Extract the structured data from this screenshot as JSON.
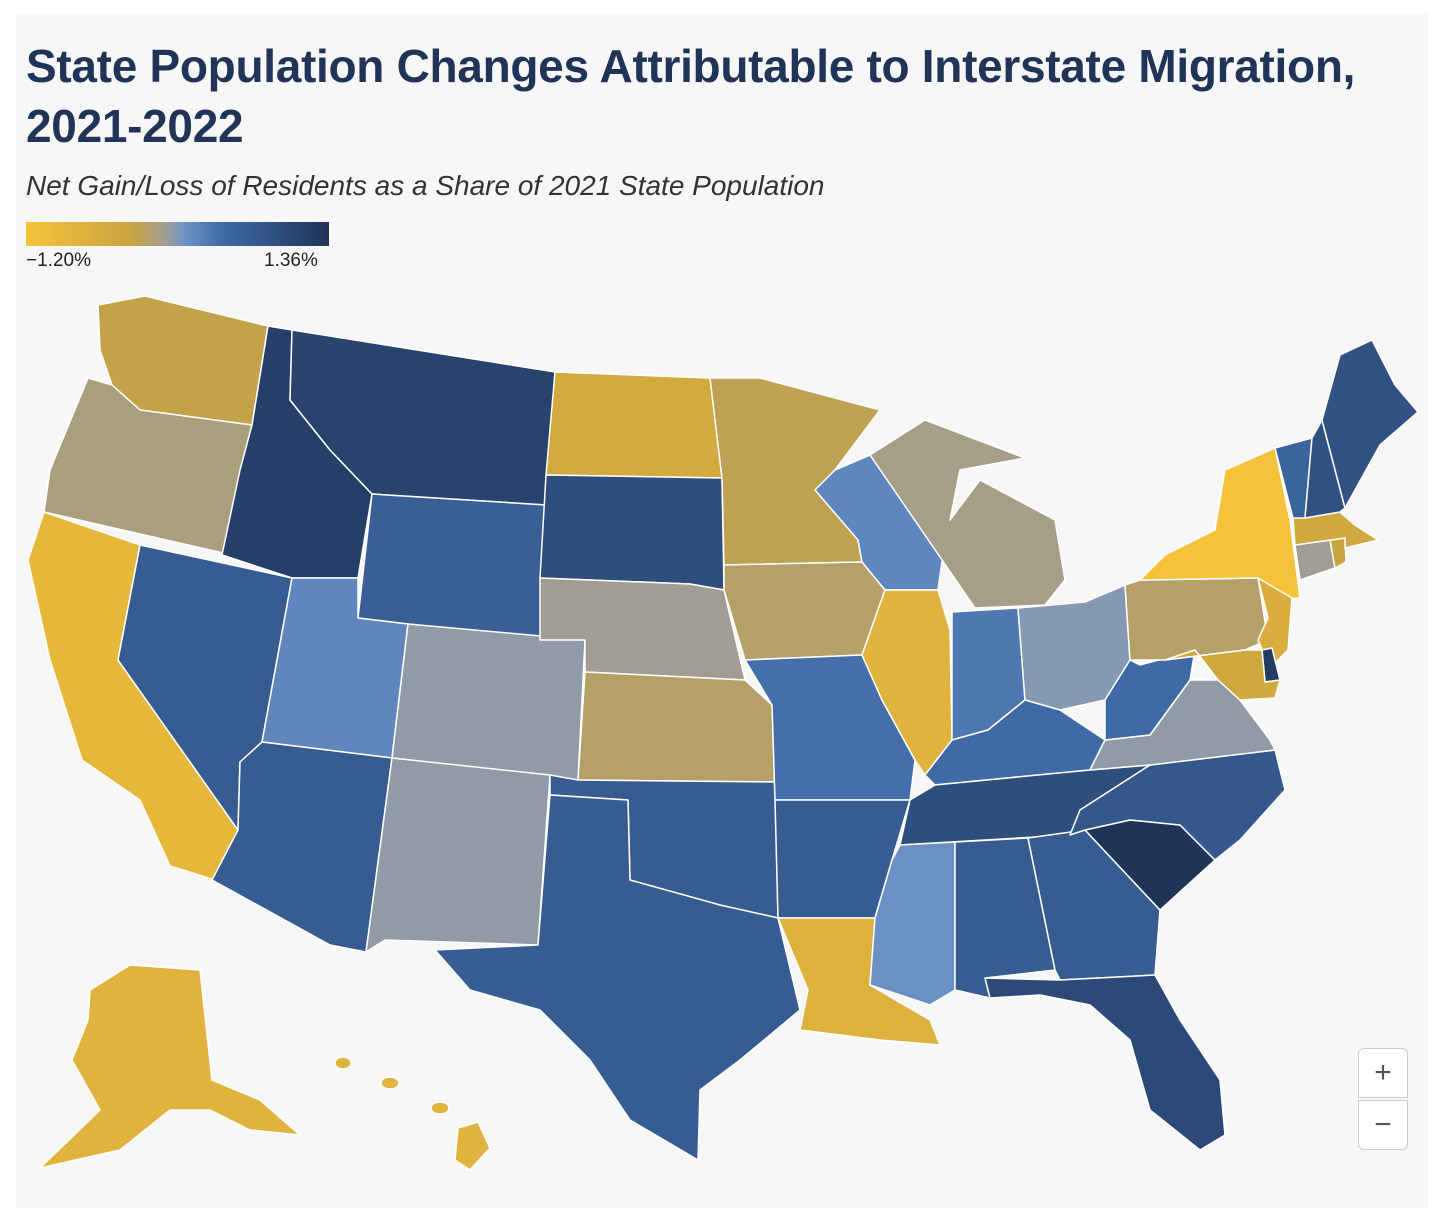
{
  "header": {
    "title": "State Population Changes Attributable to Interstate Migration, 2021-2022",
    "subtitle": "Net Gain/Loss of Residents as a Share of 2021 State Population"
  },
  "legend": {
    "min_label": "−1.20%",
    "max_label": "1.36%",
    "min": -1.2,
    "max": 1.36,
    "colors": [
      "#f5c33b",
      "#c9a33f",
      "#9c9c9c",
      "#6f95c8",
      "#3f6aa6",
      "#1f3457"
    ]
  },
  "zoom": {
    "in_label": "+",
    "out_label": "−"
  },
  "chart_data": {
    "type": "choropleth",
    "title": "State Population Changes Attributable to Interstate Migration, 2021-2022",
    "subtitle": "Net Gain/Loss of Residents as a Share of 2021 State Population",
    "unit": "% of 2021 state population",
    "scale_range": [
      -1.2,
      1.36
    ],
    "approximate_values": {
      "WA": -0.45,
      "OR": -0.2,
      "CA": -0.95,
      "NV": 0.8,
      "ID": 1.2,
      "MT": 1.15,
      "WY": 0.75,
      "UT": 0.3,
      "CO": 0.0,
      "AZ": 0.8,
      "NM": 0.0,
      "ND": -0.65,
      "SD": 1.0,
      "NE": -0.1,
      "KS": -0.3,
      "OK": 0.8,
      "TX": 0.8,
      "MN": -0.4,
      "IA": -0.3,
      "MO": 0.55,
      "AR": 0.8,
      "LA": -0.8,
      "WI": 0.3,
      "IL": -0.85,
      "MI": -0.15,
      "IN": 0.45,
      "OH": 0.05,
      "KY": 0.6,
      "TN": 1.0,
      "MS": 0.2,
      "AL": 0.8,
      "GA": 0.8,
      "FL": 1.05,
      "SC": 1.36,
      "NC": 0.85,
      "VA": 0.0,
      "WV": 0.6,
      "PA": -0.3,
      "NY": -1.2,
      "NJ": -0.75,
      "DE": 1.25,
      "MD": -0.6,
      "DC": -0.5,
      "CT": -0.1,
      "RI": -0.5,
      "MA": -0.6,
      "VT": 0.7,
      "NH": 0.95,
      "ME": 0.95,
      "AK": -0.85,
      "HI": -0.85
    }
  }
}
